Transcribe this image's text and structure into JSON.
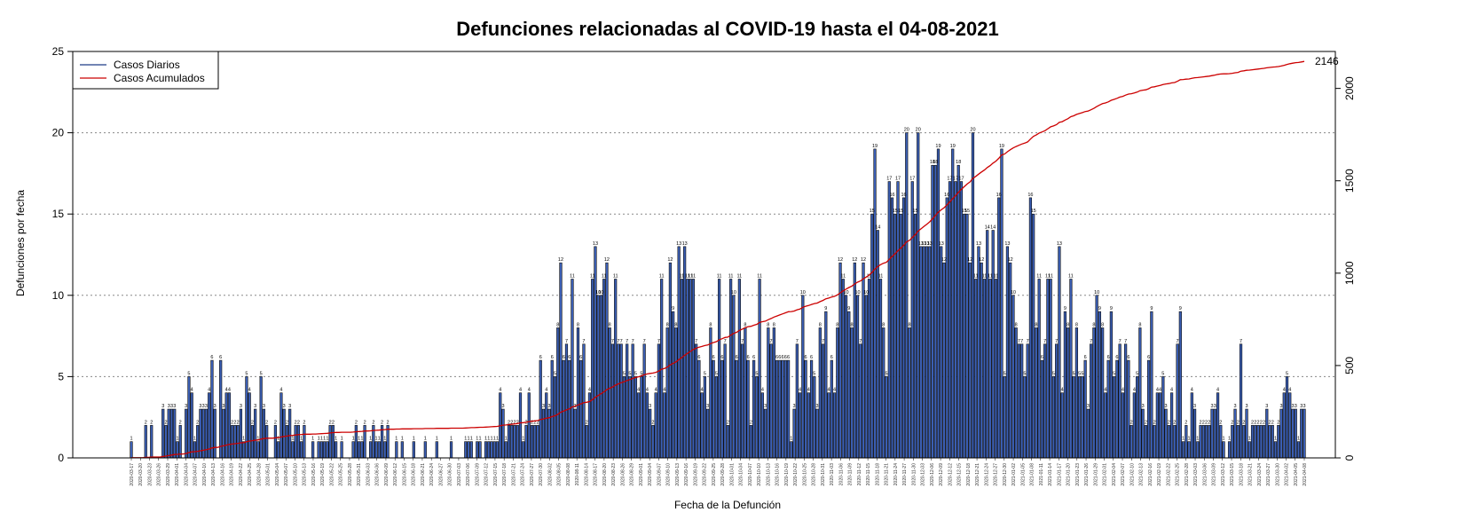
{
  "chart_data": {
    "type": "bar",
    "title": "Defunciones relacionadas al COVID-19 hasta el 04-08-2021",
    "xlabel": "Fecha de la Defunción",
    "ylabel": "Defunciones por fecha",
    "ylim": [
      0,
      25
    ],
    "y_ticks": [
      "0",
      "5",
      "10",
      "15",
      "20",
      "25"
    ],
    "y2lim": [
      0,
      2200
    ],
    "y2_ticks": [
      "0",
      "500",
      "1000",
      "1500",
      "2000"
    ],
    "grid": "horizontal dotted",
    "legend_position": "top-left",
    "final_cumulative_label": "2146",
    "series": [
      {
        "name": "Casos Diarios",
        "color": "#1f3c88"
      },
      {
        "name": "Casos Acumulados",
        "color": "#cc0000"
      }
    ],
    "x_date_labels": [
      "2020-03-17",
      "2020-03-20",
      "2020-03-23",
      "2020-03-26",
      "2020-03-29",
      "2020-04-01",
      "2020-04-04",
      "2020-04-07",
      "2020-04-10",
      "2020-04-13",
      "2020-04-16",
      "2020-04-19",
      "2020-04-22",
      "2020-04-25",
      "2020-04-28",
      "2020-05-01",
      "2020-05-04",
      "2020-05-07",
      "2020-05-10",
      "2020-05-13",
      "2020-05-16",
      "2020-05-19",
      "2020-05-22",
      "2020-05-25",
      "2020-05-28",
      "2020-05-31",
      "2020-06-03",
      "2020-06-06",
      "2020-06-09",
      "2020-06-12",
      "2020-06-15",
      "2020-06-18",
      "2020-06-21",
      "2020-06-24",
      "2020-06-27",
      "2020-06-30",
      "2020-07-03",
      "2020-07-06",
      "2020-07-09",
      "2020-07-12",
      "2020-07-15",
      "2020-07-18",
      "2020-07-21",
      "2020-07-24",
      "2020-07-27",
      "2020-07-30",
      "2020-08-02",
      "2020-08-05",
      "2020-08-08",
      "2020-08-11",
      "2020-08-14",
      "2020-08-17",
      "2020-08-20",
      "2020-08-23",
      "2020-08-26",
      "2020-08-29",
      "2020-09-01",
      "2020-09-04",
      "2020-09-07",
      "2020-09-10",
      "2020-09-13",
      "2020-09-16",
      "2020-09-19",
      "2020-09-22",
      "2020-09-25",
      "2020-09-28",
      "2020-10-01",
      "2020-10-04",
      "2020-10-07",
      "2020-10-10",
      "2020-10-13",
      "2020-10-16",
      "2020-10-19",
      "2020-10-22",
      "2020-10-25",
      "2020-10-28",
      "2020-10-31",
      "2020-11-03",
      "2020-11-06",
      "2020-11-09",
      "2020-11-12",
      "2020-11-15",
      "2020-11-18",
      "2020-11-21",
      "2020-11-24",
      "2020-11-27",
      "2020-11-30",
      "2020-12-03",
      "2020-12-06",
      "2020-12-09",
      "2020-12-12",
      "2020-12-15",
      "2020-12-18",
      "2020-12-21",
      "2020-12-24",
      "2020-12-27",
      "2020-12-30",
      "2021-01-02",
      "2021-01-05",
      "2021-01-08",
      "2021-01-11",
      "2021-01-14",
      "2021-01-17",
      "2021-01-20",
      "2021-01-23",
      "2021-01-26",
      "2021-01-29",
      "2021-02-01",
      "2021-02-04",
      "2021-02-07",
      "2021-02-10",
      "2021-02-13",
      "2021-02-16",
      "2021-02-19",
      "2021-02-22",
      "2021-02-25",
      "2021-02-28",
      "2021-03-03",
      "2021-03-06",
      "2021-03-09",
      "2021-03-12",
      "2021-03-15",
      "2021-03-18",
      "2021-03-21",
      "2021-03-24",
      "2021-03-27",
      "2021-03-30",
      "2021-04-02",
      "2021-04-05",
      "2021-04-08"
    ],
    "daily_values": [
      1,
      0,
      0,
      0,
      0,
      2,
      0,
      2,
      0,
      0,
      0,
      3,
      2,
      3,
      3,
      3,
      1,
      2,
      0,
      3,
      5,
      4,
      1,
      2,
      3,
      3,
      3,
      4,
      6,
      3,
      0,
      6,
      3,
      4,
      4,
      2,
      2,
      2,
      3,
      1,
      5,
      4,
      2,
      3,
      1,
      5,
      3,
      2,
      0,
      0,
      2,
      1,
      4,
      3,
      2,
      3,
      1,
      2,
      2,
      1,
      2,
      0,
      0,
      1,
      0,
      1,
      1,
      1,
      1,
      2,
      2,
      1,
      0,
      1,
      0,
      0,
      0,
      1,
      2,
      1,
      1,
      2,
      0,
      1,
      2,
      1,
      1,
      2,
      1,
      2,
      0,
      0,
      1,
      0,
      1,
      0,
      0,
      0,
      1,
      0,
      0,
      0,
      1,
      0,
      0,
      0,
      1,
      0,
      0,
      0,
      0,
      1,
      0,
      0,
      0,
      0,
      1,
      1,
      1,
      0,
      1,
      1,
      0,
      1,
      1,
      1,
      1,
      1,
      4,
      3,
      1,
      2,
      2,
      2,
      2,
      4,
      1,
      2,
      4,
      2,
      2,
      2,
      6,
      3,
      4,
      3,
      6,
      5,
      8,
      12,
      6,
      7,
      6,
      11,
      3,
      8,
      6,
      7,
      2,
      4,
      11,
      13,
      10,
      10,
      11,
      12,
      8,
      7,
      11,
      7,
      7,
      5,
      7,
      5,
      7,
      5,
      4,
      5,
      7,
      4,
      3,
      2,
      4,
      7,
      11,
      4,
      8,
      12,
      9,
      8,
      13,
      11,
      13,
      11,
      11,
      11,
      7,
      6,
      4,
      5,
      3,
      8,
      6,
      5,
      11,
      6,
      7,
      2,
      11,
      10,
      6,
      11,
      7,
      8,
      6,
      2,
      6,
      5,
      11,
      4,
      3,
      8,
      7,
      8,
      6,
      6,
      6,
      6,
      6,
      1,
      3,
      7,
      4,
      10,
      6,
      4,
      6,
      5,
      3,
      8,
      7,
      9,
      4,
      6,
      4,
      8,
      12,
      11,
      10,
      9,
      8,
      12,
      10,
      7,
      12,
      10,
      11,
      15,
      19,
      14,
      11,
      8,
      5,
      17,
      16,
      15,
      17,
      15,
      16,
      20,
      8,
      17,
      15,
      20,
      13,
      13,
      13,
      13,
      18,
      18,
      19,
      13,
      12,
      16,
      17,
      19,
      17,
      18,
      17,
      15,
      15,
      12,
      20,
      11,
      13,
      12,
      11,
      14,
      11,
      14,
      11,
      16,
      19,
      5,
      13,
      12,
      10,
      8,
      7,
      7,
      5,
      7,
      16,
      15,
      8,
      11,
      6,
      7,
      11,
      11,
      5,
      7,
      13,
      4,
      9,
      8,
      11,
      5,
      8,
      5,
      5,
      6,
      3,
      7,
      8,
      10,
      9,
      8,
      4,
      6,
      9,
      5,
      6,
      7,
      4,
      7,
      6,
      2,
      4,
      5,
      8,
      3,
      2,
      6,
      9,
      2,
      4,
      4,
      5,
      3,
      2,
      4,
      2,
      7,
      9,
      1,
      2,
      1,
      4,
      3,
      1,
      2,
      2,
      2,
      2,
      3,
      3,
      4,
      2,
      1,
      0,
      1,
      2,
      3,
      2,
      7,
      2,
      3,
      1,
      2,
      2,
      2,
      2,
      2,
      3,
      2,
      2,
      1,
      2,
      3,
      4,
      5,
      4,
      3,
      3,
      1,
      3,
      3
    ]
  }
}
